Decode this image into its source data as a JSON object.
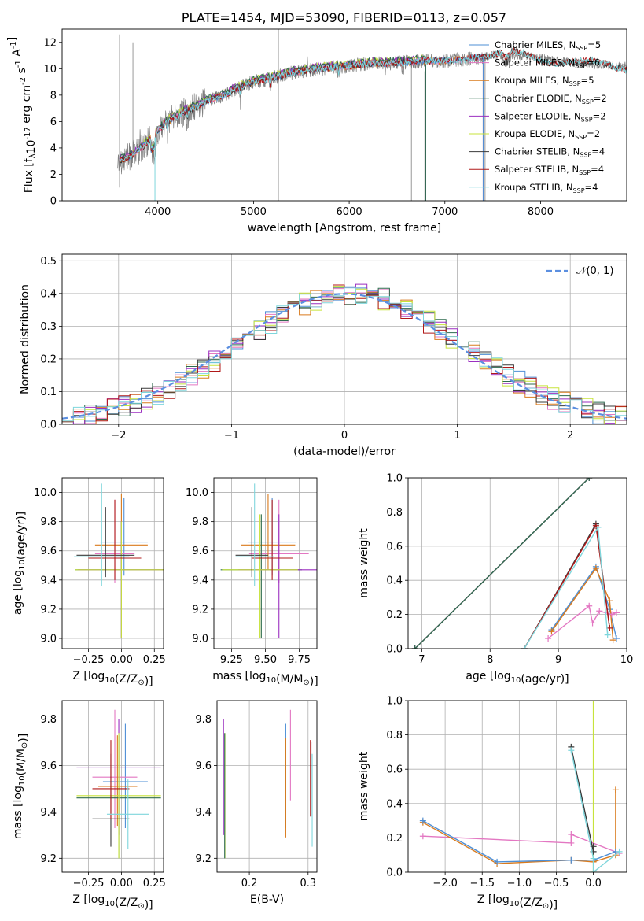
{
  "figure_title": "PLATE=1454, MJD=53090, FIBERID=0113, z=0.057",
  "colors": {
    "Chabrier MILES": "#4e8fd6",
    "Salpeter MILES": "#e377c2",
    "Kroupa MILES": "#d97a1c",
    "Chabrier ELODIE": "#2f6b4f",
    "Salpeter ELODIE": "#9b2fc0",
    "Kroupa ELODIE": "#c7e33b",
    "Chabrier STELIB": "#3a3a3a",
    "Salpeter STELIB": "#b01818",
    "Kroupa STELIB": "#7fd6dc"
  },
  "chart_data": [
    {
      "id": "spectrum",
      "type": "line",
      "title": "PLATE=1454, MJD=53090, FIBERID=0113, z=0.057",
      "xlabel": "wavelength [Angstrom, rest frame]",
      "ylabel": "Flux [f_λ10^-17 erg cm^-2 s^-1 A^-1]",
      "xlim": [
        3000,
        8900
      ],
      "ylim": [
        0,
        13
      ],
      "xticks": [
        4000,
        5000,
        6000,
        7000,
        8000
      ],
      "yticks": [
        0,
        2,
        4,
        6,
        8,
        10,
        12
      ],
      "grid": false,
      "legend_position": "top-right",
      "data_color": "#808080",
      "data_range": [
        3580,
        8900
      ],
      "legend": [
        {
          "name": "Chabrier MILES",
          "nssp": "5"
        },
        {
          "name": "Salpeter MILES",
          "nssp": "6"
        },
        {
          "name": "Kroupa MILES",
          "nssp": "5"
        },
        {
          "name": "Chabrier ELODIE",
          "nssp": "2"
        },
        {
          "name": "Salpeter ELODIE",
          "nssp": "2"
        },
        {
          "name": "Kroupa ELODIE",
          "nssp": "2"
        },
        {
          "name": "Chabrier STELIB",
          "nssp": "4"
        },
        {
          "name": "Salpeter STELIB",
          "nssp": "4"
        },
        {
          "name": "Kroupa STELIB",
          "nssp": "4"
        }
      ],
      "continuum": [
        [
          3580,
          3.0
        ],
        [
          3700,
          3.3
        ],
        [
          3800,
          3.8
        ],
        [
          3900,
          4.5
        ],
        [
          4000,
          5.3
        ],
        [
          4100,
          6.0
        ],
        [
          4200,
          6.4
        ],
        [
          4300,
          6.8
        ],
        [
          4400,
          7.1
        ],
        [
          4500,
          7.5
        ],
        [
          4600,
          7.8
        ],
        [
          4700,
          8.0
        ],
        [
          4800,
          8.4
        ],
        [
          4900,
          8.7
        ],
        [
          5000,
          9.0
        ],
        [
          5200,
          9.3
        ],
        [
          5400,
          9.7
        ],
        [
          5600,
          9.9
        ],
        [
          5800,
          10.1
        ],
        [
          6000,
          10.2
        ],
        [
          6200,
          10.4
        ],
        [
          6400,
          10.4
        ],
        [
          6600,
          10.5
        ],
        [
          6800,
          10.6
        ],
        [
          7000,
          10.6
        ],
        [
          7200,
          10.7
        ],
        [
          7400,
          10.9
        ],
        [
          7600,
          11.1
        ],
        [
          7800,
          11.0
        ],
        [
          8000,
          10.8
        ],
        [
          8200,
          10.6
        ],
        [
          8400,
          10.4
        ],
        [
          8600,
          10.3
        ],
        [
          8900,
          10.2
        ]
      ]
    },
    {
      "id": "residuals",
      "type": "line",
      "xlabel": "(data-model)/error",
      "ylabel": "Normed distribution",
      "xlim": [
        -2.5,
        2.5
      ],
      "ylim": [
        0,
        0.52
      ],
      "xticks": [
        -2,
        -1,
        0,
        1,
        2
      ],
      "yticks": [
        0.0,
        0.1,
        0.2,
        0.3,
        0.4,
        0.5
      ],
      "grid": true,
      "legend_position": "top-right",
      "gaussian_label": "𝒩(0, 1)",
      "gaussian_color": "#5b8fe0",
      "bin_width": 0.1
    },
    {
      "id": "z-age",
      "type": "scatter",
      "xlabel": "Z [log10(Z/Z⊙)]",
      "ylabel": "age  [log10(age/yr)]",
      "xlim": [
        -0.45,
        0.32
      ],
      "ylim": [
        8.93,
        10.1
      ],
      "xticks": [
        -0.25,
        0.0,
        0.25
      ],
      "xticklabels": [
        "−0.25",
        "0.00",
        "0.25"
      ],
      "yticks": [
        9.0,
        9.2,
        9.4,
        9.6,
        9.8,
        10.0
      ],
      "grid": true,
      "points": [
        {
          "model": "Chabrier MILES",
          "x": 0.02,
          "y": 9.66,
          "xerr": 0.18,
          "yerr": [
            0.23,
            0.3
          ]
        },
        {
          "model": "Salpeter MILES",
          "x": -0.05,
          "y": 9.58,
          "xerr": 0.15,
          "yerr": [
            0.2,
            0.37
          ]
        },
        {
          "model": "Kroupa MILES",
          "x": 0.0,
          "y": 9.64,
          "xerr": 0.2,
          "yerr": [
            0.17,
            0.35
          ]
        },
        {
          "model": "Chabrier ELODIE",
          "x": 0.0,
          "y": 9.47,
          "xerr": 0.35,
          "yerr": [
            0.47,
            0.33
          ]
        },
        {
          "model": "Salpeter ELODIE",
          "x": 0.0,
          "y": 9.47,
          "xerr": 0.33,
          "yerr": [
            0.47,
            0.33
          ]
        },
        {
          "model": "Kroupa ELODIE",
          "x": 0.0,
          "y": 9.47,
          "xerr": 0.35,
          "yerr": [
            0.47,
            0.33
          ]
        },
        {
          "model": "Chabrier STELIB",
          "x": -0.12,
          "y": 9.57,
          "xerr": 0.22,
          "yerr": [
            0.15,
            0.33
          ]
        },
        {
          "model": "Salpeter STELIB",
          "x": -0.05,
          "y": 9.55,
          "xerr": 0.2,
          "yerr": [
            0.15,
            0.4
          ]
        },
        {
          "model": "Kroupa STELIB",
          "x": -0.15,
          "y": 9.56,
          "xerr": 0.21,
          "yerr": [
            0.2,
            0.5
          ]
        }
      ]
    },
    {
      "id": "mass-age",
      "type": "scatter",
      "xlabel": "mass [log10(M/M⊙)]",
      "ylabel": "",
      "xlim": [
        9.12,
        9.88
      ],
      "ylim": [
        8.93,
        10.1
      ],
      "xticks": [
        9.25,
        9.5,
        9.75
      ],
      "xticklabels": [
        "9.25",
        "9.50",
        "9.75"
      ],
      "yticks": [
        9.0,
        9.2,
        9.4,
        9.6,
        9.8,
        10.0
      ],
      "grid": true,
      "points": [
        {
          "model": "Chabrier MILES",
          "x": 9.55,
          "y": 9.66,
          "xerr": 0.18,
          "yerr": [
            0.23,
            0.3
          ]
        },
        {
          "model": "Salpeter MILES",
          "x": 9.6,
          "y": 9.58,
          "xerr": 0.22,
          "yerr": [
            0.2,
            0.37
          ]
        },
        {
          "model": "Kroupa MILES",
          "x": 9.52,
          "y": 9.64,
          "xerr": 0.2,
          "yerr": [
            0.17,
            0.35
          ]
        },
        {
          "model": "Chabrier ELODIE",
          "x": 9.47,
          "y": 9.47,
          "xerr": 0.3,
          "yerr": [
            0.47,
            0.38
          ]
        },
        {
          "model": "Salpeter ELODIE",
          "x": 9.6,
          "y": 9.47,
          "xerr": 0.3,
          "yerr": [
            0.47,
            0.38
          ]
        },
        {
          "model": "Kroupa ELODIE",
          "x": 9.46,
          "y": 9.47,
          "xerr": 0.28,
          "yerr": [
            0.47,
            0.38
          ]
        },
        {
          "model": "Chabrier STELIB",
          "x": 9.4,
          "y": 9.57,
          "xerr": 0.12,
          "yerr": [
            0.15,
            0.33
          ]
        },
        {
          "model": "Salpeter STELIB",
          "x": 9.55,
          "y": 9.55,
          "xerr": 0.15,
          "yerr": [
            0.15,
            0.4
          ]
        },
        {
          "model": "Kroupa STELIB",
          "x": 9.42,
          "y": 9.56,
          "xerr": 0.14,
          "yerr": [
            0.2,
            0.5
          ]
        }
      ]
    },
    {
      "id": "weight-age",
      "type": "line",
      "xlabel": "age  [log10(age/yr)]",
      "ylabel": "mass weight",
      "xlim": [
        6.8,
        10
      ],
      "ylim": [
        0,
        1.0
      ],
      "xticks": [
        7,
        8,
        9,
        10
      ],
      "yticks": [
        0.0,
        0.2,
        0.4,
        0.6,
        0.8,
        1.0
      ],
      "grid": true,
      "series": [
        {
          "model": "Kroupa ELODIE",
          "x": [
            6.9,
            9.45
          ],
          "y": [
            0.0,
            1.0
          ]
        },
        {
          "model": "Salpeter ELODIE",
          "x": [
            6.9,
            9.45
          ],
          "y": [
            0.0,
            1.0
          ]
        },
        {
          "model": "Chabrier ELODIE",
          "x": [
            6.9,
            9.45
          ],
          "y": [
            0.0,
            1.0
          ]
        },
        {
          "model": "Chabrier MILES",
          "x": [
            8.9,
            9.55,
            9.75,
            9.85
          ],
          "y": [
            0.11,
            0.48,
            0.23,
            0.06
          ]
        },
        {
          "model": "Kroupa MILES",
          "x": [
            8.9,
            9.55,
            9.75,
            9.8
          ],
          "y": [
            0.1,
            0.47,
            0.28,
            0.05
          ]
        },
        {
          "model": "Salpeter MILES",
          "x": [
            8.85,
            9.45,
            9.5,
            9.6,
            9.78,
            9.85
          ],
          "y": [
            0.06,
            0.25,
            0.15,
            0.22,
            0.2,
            0.21
          ]
        },
        {
          "model": "Chabrier STELIB",
          "x": [
            8.5,
            9.55,
            9.75
          ],
          "y": [
            0.0,
            0.73,
            0.12
          ]
        },
        {
          "model": "Salpeter STELIB",
          "x": [
            8.5,
            9.55,
            9.75
          ],
          "y": [
            0.0,
            0.72,
            0.12
          ]
        },
        {
          "model": "Kroupa STELIB",
          "x": [
            8.5,
            9.58,
            9.72
          ],
          "y": [
            0.0,
            0.71,
            0.08
          ]
        }
      ]
    },
    {
      "id": "z-mass",
      "type": "scatter",
      "xlabel": "Z [log10(Z/Z⊙)]",
      "ylabel": "mass [log10(M/M⊙)]",
      "xlim": [
        -0.45,
        0.32
      ],
      "ylim": [
        9.14,
        9.88
      ],
      "xticks": [
        -0.25,
        0.0,
        0.25
      ],
      "xticklabels": [
        "−0.25",
        "0.00",
        "0.25"
      ],
      "yticks": [
        9.2,
        9.4,
        9.6,
        9.8
      ],
      "grid": true,
      "points": [
        {
          "model": "Chabrier MILES",
          "x": 0.03,
          "y": 9.53,
          "xerr": 0.17,
          "yerr": [
            0.2,
            0.25
          ]
        },
        {
          "model": "Salpeter MILES",
          "x": -0.05,
          "y": 9.55,
          "xerr": 0.17,
          "yerr": [
            0.22,
            0.29
          ]
        },
        {
          "model": "Kroupa MILES",
          "x": -0.03,
          "y": 9.51,
          "xerr": 0.15,
          "yerr": [
            0.17,
            0.22
          ]
        },
        {
          "model": "Chabrier ELODIE",
          "x": -0.02,
          "y": 9.46,
          "xerr": 0.32,
          "yerr": [
            0.26,
            0.27
          ]
        },
        {
          "model": "Salpeter ELODIE",
          "x": -0.02,
          "y": 9.59,
          "xerr": 0.32,
          "yerr": [
            0.29,
            0.21
          ]
        },
        {
          "model": "Kroupa ELODIE",
          "x": -0.02,
          "y": 9.47,
          "xerr": 0.32,
          "yerr": [
            0.27,
            0.27
          ]
        },
        {
          "model": "Chabrier STELIB",
          "x": -0.08,
          "y": 9.37,
          "xerr": 0.14,
          "yerr": [
            0.12,
            0.28
          ]
        },
        {
          "model": "Salpeter STELIB",
          "x": -0.08,
          "y": 9.5,
          "xerr": 0.14,
          "yerr": [
            0.13,
            0.21
          ]
        },
        {
          "model": "Kroupa STELIB",
          "x": 0.05,
          "y": 9.39,
          "xerr": 0.16,
          "yerr": [
            0.15,
            0.15
          ]
        }
      ]
    },
    {
      "id": "ebv-mass",
      "type": "scatter",
      "xlabel": "E(B-V)",
      "ylabel": "",
      "xlim": [
        0.145,
        0.315
      ],
      "ylim": [
        9.14,
        9.88
      ],
      "xticks": [
        0.2,
        0.3
      ],
      "xticklabels": [
        "0.2",
        "0.3"
      ],
      "yticks": [
        9.2,
        9.4,
        9.6,
        9.8
      ],
      "grid": true,
      "points": [
        {
          "model": "Chabrier MILES",
          "x": 0.262,
          "y": 9.53,
          "yerr": [
            0.2,
            0.25
          ]
        },
        {
          "model": "Salpeter MILES",
          "x": 0.27,
          "y": 9.55,
          "yerr": [
            0.1,
            0.29
          ]
        },
        {
          "model": "Kroupa MILES",
          "x": 0.262,
          "y": 9.5,
          "yerr": [
            0.21,
            0.22
          ]
        },
        {
          "model": "Chabrier ELODIE",
          "x": 0.158,
          "y": 9.47,
          "yerr": [
            0.27,
            0.27
          ]
        },
        {
          "model": "Salpeter ELODIE",
          "x": 0.156,
          "y": 9.55,
          "yerr": [
            0.25,
            0.25
          ]
        },
        {
          "model": "Kroupa ELODIE",
          "x": 0.16,
          "y": 9.47,
          "yerr": [
            0.27,
            0.27
          ]
        },
        {
          "model": "Chabrier STELIB",
          "x": 0.305,
          "y": 9.5,
          "yerr": [
            0.12,
            0.2
          ]
        },
        {
          "model": "Salpeter STELIB",
          "x": 0.304,
          "y": 9.5,
          "yerr": [
            0.12,
            0.21
          ]
        },
        {
          "model": "Kroupa STELIB",
          "x": 0.307,
          "y": 9.45,
          "yerr": [
            0.2,
            0.2
          ]
        }
      ]
    },
    {
      "id": "weight-z",
      "type": "line",
      "xlabel": "Z [log10(Z/Z⊙)]",
      "ylabel": "mass weight",
      "xlim": [
        -2.5,
        0.45
      ],
      "ylim": [
        0,
        1.0
      ],
      "xticks": [
        -2.0,
        -1.5,
        -1.0,
        -0.5,
        0.0
      ],
      "xticklabels": [
        "−2.0",
        "−1.5",
        "−1.0",
        "−0.5",
        "0.0"
      ],
      "yticks": [
        0.0,
        0.2,
        0.4,
        0.6,
        0.8,
        1.0
      ],
      "grid": true,
      "series": [
        {
          "model": "Kroupa ELODIE",
          "x": [
            0.0,
            0.0
          ],
          "y": [
            0.0,
            1.0
          ]
        },
        {
          "model": "Salpeter MILES",
          "x": [
            -2.3,
            -0.3,
            -0.3,
            0.35
          ],
          "y": [
            0.21,
            0.17,
            0.22,
            0.11
          ]
        },
        {
          "model": "Kroupa MILES",
          "x": [
            -2.3,
            -1.3,
            -0.3,
            0.0,
            0.3,
            0.3
          ],
          "y": [
            0.29,
            0.05,
            0.07,
            0.06,
            0.1,
            0.48
          ]
        },
        {
          "model": "Chabrier MILES",
          "x": [
            -2.3,
            -1.3,
            -0.3,
            0.0,
            0.3
          ],
          "y": [
            0.3,
            0.06,
            0.07,
            0.07,
            0.12
          ]
        },
        {
          "model": "Chabrier STELIB",
          "x": [
            -0.3,
            0.0,
            0.0
          ],
          "y": [
            0.73,
            0.12,
            0.15
          ]
        },
        {
          "model": "Kroupa STELIB",
          "x": [
            -0.3,
            0.0,
            0.0,
            0.35
          ],
          "y": [
            0.71,
            0.08,
            0.0,
            0.12
          ]
        }
      ]
    }
  ]
}
